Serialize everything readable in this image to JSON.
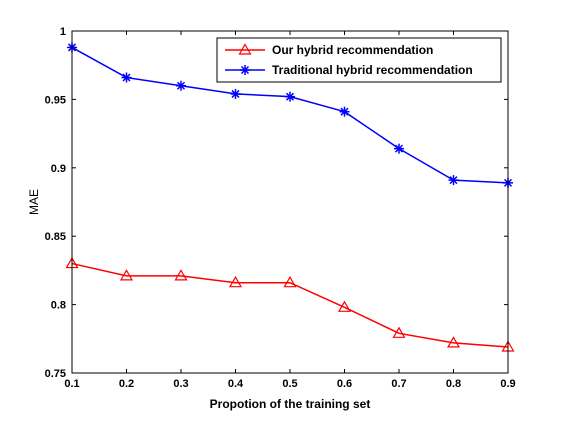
{
  "chart_data": {
    "type": "line",
    "title": "",
    "xlabel": "Propotion of the training set",
    "ylabel": "MAE",
    "x": [
      0.1,
      0.2,
      0.3,
      0.4,
      0.5,
      0.6,
      0.7,
      0.8,
      0.9
    ],
    "x_tick_labels": [
      "0.1",
      "0.2",
      "0.3",
      "0.4",
      "0.5",
      "0.6",
      "0.7",
      "0.8",
      "0.9"
    ],
    "y_ticks": [
      0.75,
      0.8,
      0.85,
      0.9,
      0.95,
      1
    ],
    "y_tick_labels": [
      "0.75",
      "0.8",
      "0.85",
      "0.9",
      "0.95",
      "1"
    ],
    "xlim": [
      0.1,
      0.9
    ],
    "ylim": [
      0.75,
      1.0
    ],
    "grid": false,
    "legend_position": "top-right",
    "series": [
      {
        "name": "Our hybrid recommendation",
        "color": "#ff0000",
        "marker": "triangle",
        "values": [
          0.83,
          0.821,
          0.821,
          0.816,
          0.816,
          0.798,
          0.779,
          0.772,
          0.769
        ]
      },
      {
        "name": "Traditional hybrid recommendation",
        "color": "#0000ff",
        "marker": "asterisk",
        "values": [
          0.988,
          0.966,
          0.96,
          0.954,
          0.952,
          0.941,
          0.914,
          0.891,
          0.889
        ]
      }
    ]
  }
}
